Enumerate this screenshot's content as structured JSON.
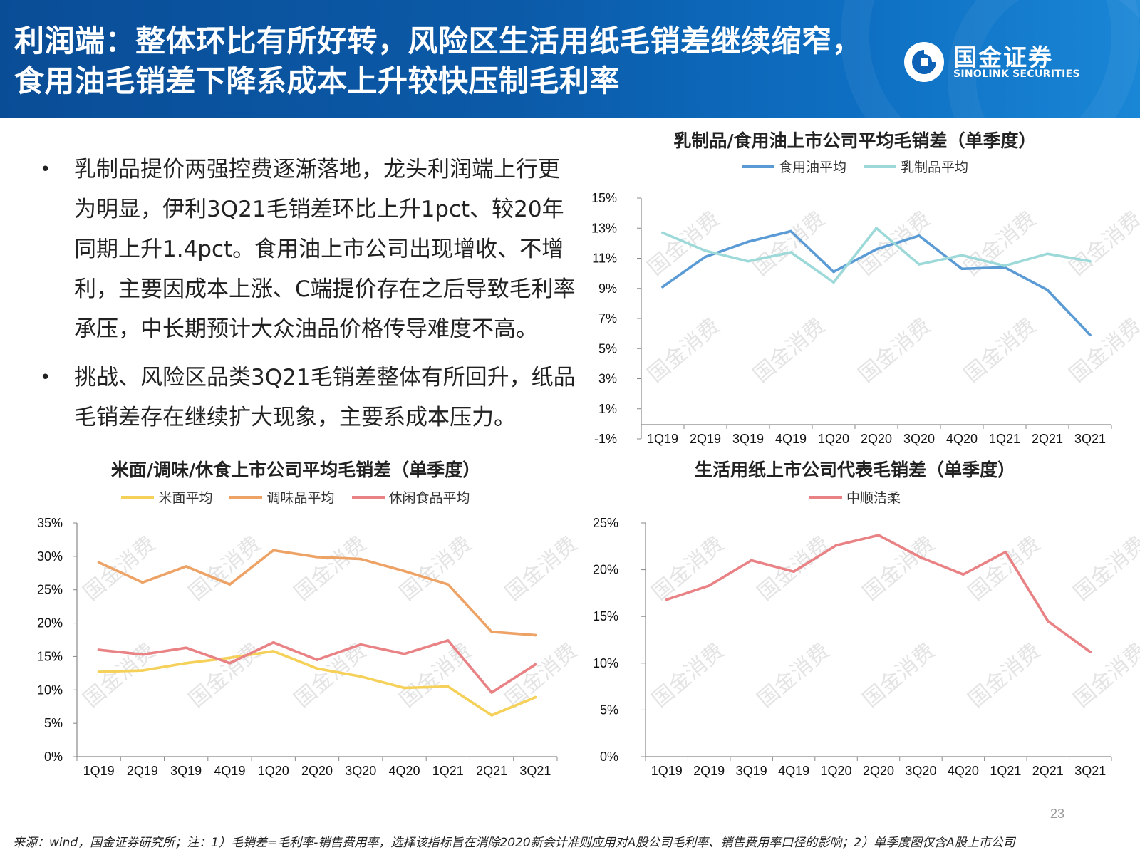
{
  "header": {
    "title": "利润端：整体环比有所好转，风险区生活用纸毛销差继续缩窄，食用油毛销差下降系成本上升较快压制毛利率",
    "logo_cn": "国金证券",
    "logo_en": "SINOLINK SECURITIES",
    "logo_icon": "sinolink-logo-mark",
    "colors": {
      "header_blue": "#0b5aa8"
    }
  },
  "bullets": [
    {
      "text": "乳制品提价两强控费逐渐落地，龙头利润端上行更为明显，伊利3Q21毛销差环比上升1pct、较20年同期上升1.4pct。食用油上市公司出现增收、不增利，主要因成本上涨、C端提价存在之后导致毛利率承压，中长期预计大众油品价格传导难度不高。"
    },
    {
      "text": "挑战、风险区品类3Q21毛销差整体有所回升，纸品毛销差存在继续扩大现象，主要系成本压力。"
    }
  ],
  "bullet_glyph": "•",
  "watermark": "国金消费",
  "chart_data": [
    {
      "type": "line",
      "title": "乳制品/食用油上市公司平均毛销差（单季度）",
      "categories": [
        "1Q19",
        "2Q19",
        "3Q19",
        "4Q19",
        "1Q20",
        "2Q20",
        "3Q20",
        "4Q20",
        "1Q21",
        "2Q21",
        "3Q21"
      ],
      "ylim": [
        -1,
        15
      ],
      "yticks": [
        -1,
        1,
        3,
        5,
        7,
        9,
        11,
        13,
        15
      ],
      "ytick_labels": [
        "-1%",
        "1%",
        "3%",
        "5%",
        "7%",
        "9%",
        "11%",
        "13%",
        "15%"
      ],
      "x_axis_at": -1,
      "series": [
        {
          "name": "食用油平均",
          "color": "#5b9bd5",
          "values": [
            9.1,
            11.1,
            12.1,
            12.8,
            10.1,
            11.6,
            12.5,
            10.3,
            10.4,
            8.9,
            5.9
          ]
        },
        {
          "name": "乳制品平均",
          "color": "#9ed9d9",
          "values": [
            12.7,
            11.5,
            10.8,
            11.4,
            9.4,
            13.0,
            10.6,
            11.2,
            10.5,
            11.3,
            10.8
          ]
        }
      ]
    },
    {
      "type": "line",
      "title": "米面/调味/休食上市公司平均毛销差（单季度）",
      "categories": [
        "1Q19",
        "2Q19",
        "3Q19",
        "4Q19",
        "1Q20",
        "2Q20",
        "3Q20",
        "4Q20",
        "1Q21",
        "2Q21",
        "3Q21"
      ],
      "ylim": [
        0,
        35
      ],
      "yticks": [
        0,
        5,
        10,
        15,
        20,
        25,
        30,
        35
      ],
      "ytick_labels": [
        "0%",
        "5%",
        "10%",
        "15%",
        "20%",
        "25%",
        "30%",
        "35%"
      ],
      "x_axis_at": 0,
      "series": [
        {
          "name": "米面平均",
          "color": "#f5d15a",
          "values": [
            12.7,
            12.9,
            14.0,
            14.8,
            15.8,
            13.2,
            12.0,
            10.3,
            10.5,
            6.2,
            8.9
          ]
        },
        {
          "name": "调味品平均",
          "color": "#eda266",
          "values": [
            29.1,
            26.1,
            28.5,
            25.8,
            30.9,
            29.9,
            29.6,
            27.8,
            25.8,
            18.7,
            18.2
          ]
        },
        {
          "name": "休闲食品平均",
          "color": "#e98285",
          "values": [
            16.0,
            15.3,
            16.3,
            14.0,
            17.1,
            14.5,
            16.8,
            15.4,
            17.4,
            9.6,
            13.8
          ]
        }
      ]
    },
    {
      "type": "line",
      "title": "生活用纸上市公司代表毛销差（单季度）",
      "categories": [
        "1Q19",
        "2Q19",
        "3Q19",
        "4Q19",
        "1Q20",
        "2Q20",
        "3Q20",
        "4Q20",
        "1Q21",
        "2Q21",
        "3Q21"
      ],
      "ylim": [
        0,
        25
      ],
      "yticks": [
        0,
        5,
        10,
        15,
        20,
        25
      ],
      "ytick_labels": [
        "0%",
        "5%",
        "10%",
        "15%",
        "20%",
        "25%"
      ],
      "x_axis_at": 0,
      "series": [
        {
          "name": "中顺洁柔",
          "color": "#e98285",
          "values": [
            16.8,
            18.3,
            21.0,
            19.8,
            22.6,
            23.7,
            21.3,
            19.5,
            21.9,
            14.5,
            11.2
          ]
        }
      ]
    }
  ],
  "footer": {
    "page_number": "23",
    "footnote": "来源：wind，国金证券研究所；注：1）毛销差=毛利率-销售费用率，选择该指标旨在消除2020新会计准则应用对A股公司毛利率、销售费用率口径的影响；2）单季度图仅含A股上市公司"
  }
}
